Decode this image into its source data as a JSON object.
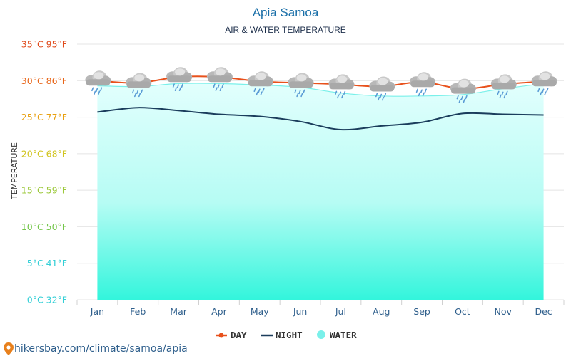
{
  "chart_data": {
    "type": "line",
    "title": "Apia Samoa",
    "subtitle": "AIR & WATER TEMPERATURE",
    "ylabel": "TEMPERATURE",
    "categories": [
      "Jan",
      "Feb",
      "Mar",
      "Apr",
      "May",
      "Jun",
      "Jul",
      "Aug",
      "Sep",
      "Oct",
      "Nov",
      "Dec"
    ],
    "ylim": [
      0,
      35
    ],
    "yticks": [
      {
        "value": 0,
        "label": "0°C 32°F",
        "color": "#33cfd6"
      },
      {
        "value": 5,
        "label": "5°C 41°F",
        "color": "#33cfd6"
      },
      {
        "value": 10,
        "label": "10°C 50°F",
        "color": "#74c64a"
      },
      {
        "value": 15,
        "label": "15°C 59°F",
        "color": "#9cc83a"
      },
      {
        "value": 20,
        "label": "20°C 68°F",
        "color": "#d1c420"
      },
      {
        "value": 25,
        "label": "25°C 77°F",
        "color": "#e8a010"
      },
      {
        "value": 30,
        "label": "30°C 86°F",
        "color": "#e8661a"
      },
      {
        "value": 35,
        "label": "35°C 95°F",
        "color": "#e04a1a"
      }
    ],
    "grid": true,
    "legend_position": "bottom-center",
    "series": [
      {
        "name": "DAY",
        "color": "#e8511c",
        "values": [
          30.0,
          29.7,
          30.5,
          30.5,
          29.9,
          29.7,
          29.5,
          29.2,
          29.8,
          28.9,
          29.5,
          29.9
        ]
      },
      {
        "name": "NIGHT",
        "color": "#1b3d5c",
        "values": [
          25.7,
          26.3,
          25.9,
          25.4,
          25.1,
          24.4,
          23.3,
          23.8,
          24.3,
          25.5,
          25.4,
          25.3
        ]
      },
      {
        "name": "WATER",
        "color": "#7af0ea",
        "values": [
          29.3,
          29.2,
          29.6,
          29.6,
          29.4,
          29.1,
          28.3,
          27.9,
          27.9,
          28.1,
          28.9,
          29.6
        ]
      }
    ],
    "weather_icon": "rain-cloud-icon",
    "source": "hikersbay.com/climate/samoa/apia"
  }
}
